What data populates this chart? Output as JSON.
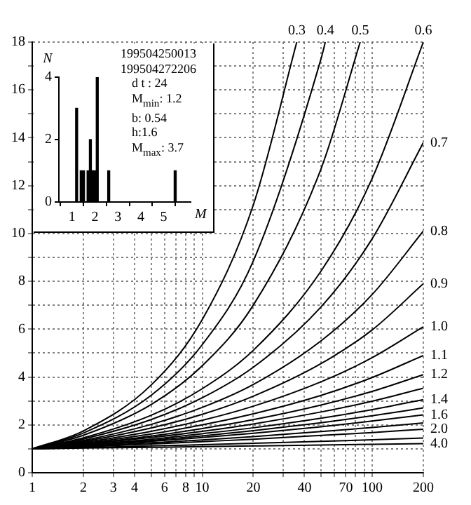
{
  "chart_data": [
    {
      "type": "line",
      "log": "x",
      "grid": true,
      "marker": "none",
      "x": [
        1,
        2,
        5,
        10,
        20,
        50,
        100,
        200
      ],
      "xlim": [
        1,
        200
      ],
      "xticks": [
        1,
        2,
        3,
        4,
        {
          "value": 5,
          "label": null
        },
        6,
        {
          "value": 7,
          "label": null
        },
        8,
        {
          "value": 9,
          "label": null
        },
        10,
        20,
        {
          "value": 30,
          "label": null
        },
        40,
        {
          "value": 50,
          "label": null
        },
        {
          "value": 60,
          "label": null
        },
        70,
        {
          "value": 80,
          "label": null
        },
        {
          "value": 90,
          "label": null
        },
        100,
        200
      ],
      "ylim": [
        0,
        18
      ],
      "yticks": [
        0,
        {
          "value": 1,
          "label": null
        },
        2,
        {
          "value": 3,
          "label": null
        },
        4,
        {
          "value": 5,
          "label": null
        },
        6,
        {
          "value": 7,
          "label": null
        },
        8,
        {
          "value": 9,
          "label": null
        },
        10,
        {
          "value": 11,
          "label": null
        },
        12,
        {
          "value": 13,
          "label": null
        },
        14,
        {
          "value": 15,
          "label": null
        },
        16,
        {
          "value": 17,
          "label": null
        },
        18
      ],
      "series": [
        {
          "name": "0.3",
          "color": "#000000",
          "x": [
            1,
            2,
            5,
            10,
            20,
            36
          ],
          "values": [
            1,
            1.75,
            3.66,
            6.4,
            11.2,
            18
          ]
        },
        {
          "name": "0.4",
          "color": "#000000",
          "x": [
            1,
            2,
            5,
            10,
            20,
            50,
            53
          ],
          "values": [
            1,
            1.66,
            3.23,
            5.35,
            8.86,
            17.3,
            18
          ]
        },
        {
          "name": "0.5",
          "color": "#000000",
          "x": [
            1,
            2,
            5,
            10,
            20,
            50,
            85
          ],
          "values": [
            1,
            1.57,
            2.85,
            4.47,
            7.01,
            12.7,
            18
          ]
        },
        {
          "name": "0.6",
          "color": "#000000",
          "values": [
            1,
            1.46,
            2.4,
            3.51,
            5.12,
            8.43,
            12.3,
            18
          ]
        },
        {
          "name": "0.7",
          "color": "#000000",
          "values": [
            1,
            1.41,
            2.22,
            3.13,
            4.41,
            6.93,
            9.78,
            13.8
          ]
        },
        {
          "name": "0.8",
          "color": "#000000",
          "values": [
            1,
            1.35,
            2.02,
            2.73,
            3.69,
            5.51,
            7.45,
            10.1
          ]
        },
        {
          "name": "0.9",
          "color": "#000000",
          "values": [
            1,
            1.31,
            1.87,
            2.44,
            3.2,
            4.56,
            5.97,
            7.9
          ]
        },
        {
          "name": "1.0",
          "color": "#000000",
          "values": [
            1,
            1.27,
            1.73,
            2.19,
            2.78,
            3.8,
            4.81,
            6.1
          ]
        },
        {
          "name": "1.1",
          "color": "#000000",
          "values": [
            1,
            1.23,
            1.62,
            2.0,
            2.46,
            3.23,
            3.98,
            4.9
          ]
        },
        {
          "name": "1.2",
          "color": "#000000",
          "values": [
            1,
            1.2,
            1.53,
            1.85,
            2.22,
            2.83,
            3.4,
            4.1
          ]
        },
        {
          "color": "#000000",
          "values": [
            1,
            1.18,
            1.47,
            1.73,
            2.04,
            2.54,
            2.99,
            3.53
          ]
        },
        {
          "name": "1.4",
          "color": "#000000",
          "values": [
            1,
            1.16,
            1.4,
            1.63,
            1.88,
            2.28,
            2.64,
            3.06
          ]
        },
        {
          "color": "#000000",
          "values": [
            1,
            1.14,
            1.35,
            1.54,
            1.76,
            2.09,
            2.38,
            2.71
          ]
        },
        {
          "name": "1.6",
          "color": "#000000",
          "values": [
            1,
            1.12,
            1.31,
            1.47,
            1.65,
            1.92,
            2.16,
            2.42
          ]
        },
        {
          "color": "#000000",
          "values": [
            1,
            1.1,
            1.25,
            1.37,
            1.51,
            1.72,
            1.89,
            2.08
          ]
        },
        {
          "name": "2.0",
          "color": "#000000",
          "values": [
            1,
            1.08,
            1.2,
            1.3,
            1.4,
            1.56,
            1.68,
            1.82
          ]
        },
        {
          "color": "#000000",
          "values": [
            1,
            1.05,
            1.12,
            1.17,
            1.23,
            1.31,
            1.38,
            1.45
          ]
        },
        {
          "name": "4.0",
          "color": "#000000",
          "values": [
            1,
            1.03,
            1.06,
            1.09,
            1.12,
            1.16,
            1.19,
            1.22
          ]
        }
      ]
    },
    {
      "type": "bar",
      "xlabel": "M",
      "ylabel": "N",
      "color": "#000000",
      "x": [
        1.2,
        1.4,
        1.5,
        1.7,
        1.8,
        1.9,
        2.0,
        2.1,
        2.6,
        5.5
      ],
      "values": [
        3,
        1,
        1,
        1,
        2,
        1,
        1,
        4,
        1,
        1
      ],
      "xlim": [
        1,
        5.6
      ],
      "xticks": [
        1,
        2,
        3,
        4,
        5
      ],
      "ylim": [
        0,
        4
      ],
      "yticks": [
        0,
        2,
        4
      ],
      "annotations": [
        "199504250013",
        "199504272206",
        "d t : 24",
        "M$_{min}$: 1.2",
        "b: 0.54",
        "h:1.6",
        "M$_{max}$: 3.7"
      ]
    }
  ]
}
